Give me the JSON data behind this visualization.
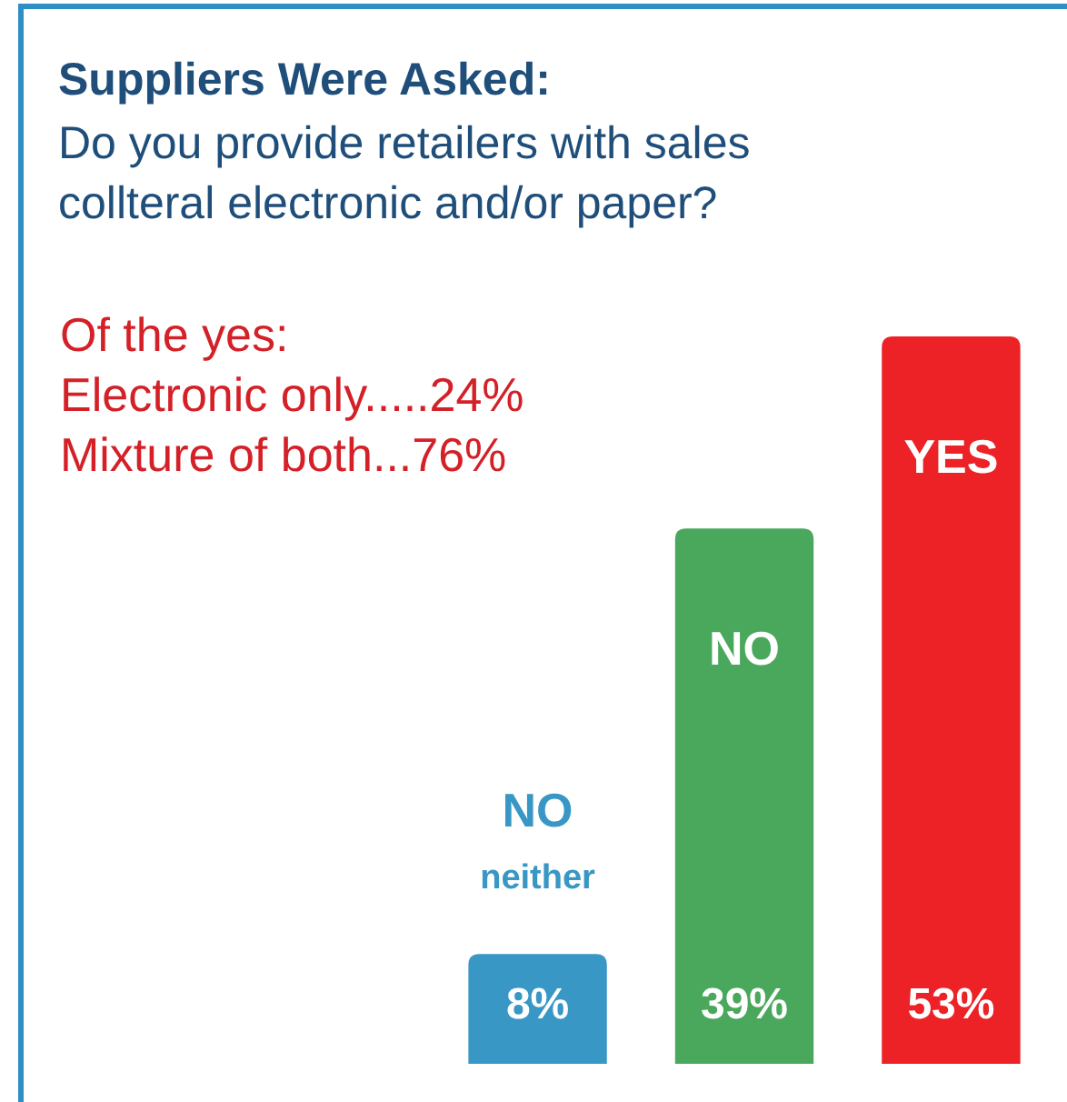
{
  "chart_data": {
    "type": "bar",
    "title": "Suppliers Were Asked:",
    "subtitle": "Do you provide retailers with sales collteral electronic and/or paper?",
    "annotations": [
      "Of the yes:",
      "Electronic only.....24%",
      "Mixture of both...76%"
    ],
    "categories": [
      "NO\nneither",
      "NO",
      "YES"
    ],
    "values": [
      8,
      39,
      53
    ],
    "colors": [
      "#3897c5",
      "#4aa85c",
      "#ec2227"
    ],
    "value_labels": [
      "8%",
      "39%",
      "53%"
    ]
  }
}
